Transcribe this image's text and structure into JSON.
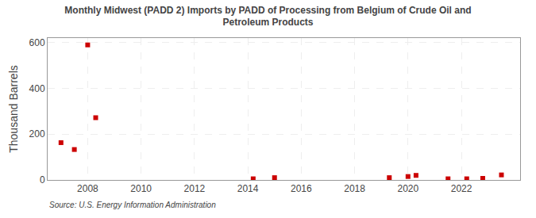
{
  "chart_data": {
    "type": "scatter",
    "title": "Monthly Midwest (PADD 2) Imports by PADD of Processing from Belgium of Crude Oil and\nPetroleum Products",
    "ylabel": "Thousand Barrels",
    "annotations": [
      "Source: U.S. Energy Information Administration"
    ],
    "x": [
      2007.0,
      2007.5,
      2008.0,
      2008.3,
      2014.2,
      2015.0,
      2019.3,
      2020.0,
      2020.3,
      2021.5,
      2022.2,
      2022.8,
      2023.5
    ],
    "values": [
      163,
      133,
      590,
      272,
      5,
      10,
      10,
      15,
      20,
      5,
      5,
      7,
      22
    ],
    "color": "#cc0000",
    "marker": "square",
    "xlim": [
      2006.5,
      2024.2
    ],
    "ylim": [
      0,
      620
    ],
    "xticks": [
      2008,
      2010,
      2012,
      2014,
      2016,
      2018,
      2020,
      2022
    ],
    "yticks": [
      0,
      200,
      400,
      600
    ],
    "grid": true
  }
}
